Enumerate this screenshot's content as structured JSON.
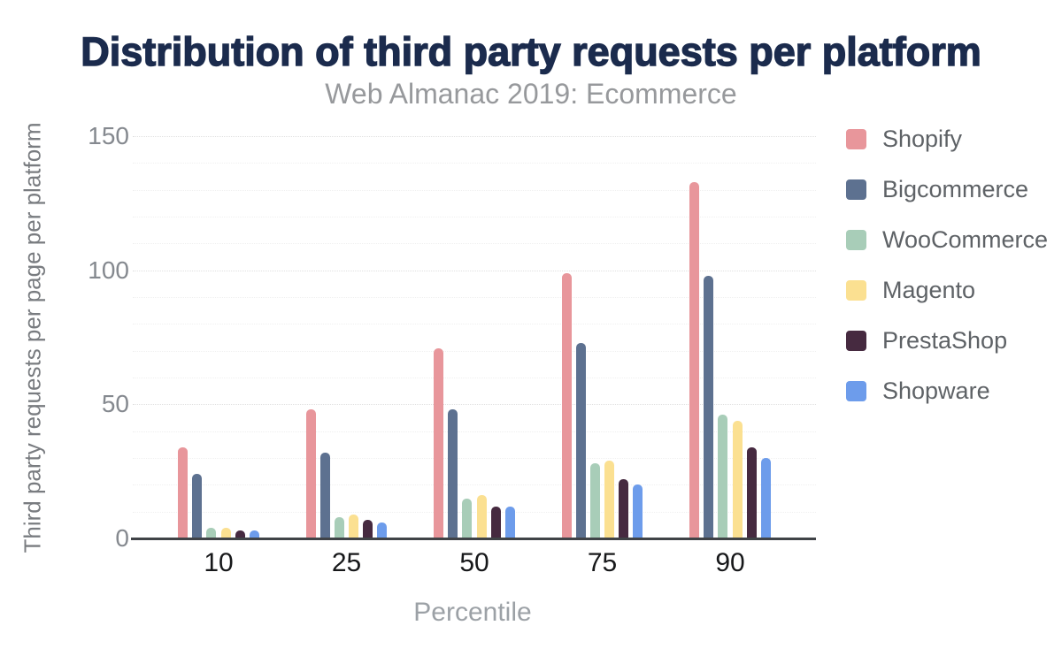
{
  "title": "Distribution of third party requests per platform",
  "subtitle": "Web Almanac 2019: Ecommerce",
  "chart_data": {
    "type": "bar",
    "title": "Distribution of third party requests per platform",
    "subtitle": "Web Almanac 2019: Ecommerce",
    "xlabel": "Percentile",
    "ylabel": "Third party requests per page per platform",
    "categories": [
      "10",
      "25",
      "50",
      "75",
      "90"
    ],
    "series": [
      {
        "name": "Shopify",
        "color": "#e8969b",
        "values": [
          34,
          48,
          71,
          99,
          133
        ]
      },
      {
        "name": "Bigcommerce",
        "color": "#5d7190",
        "values": [
          24,
          32,
          48,
          73,
          98
        ]
      },
      {
        "name": "WooCommerce",
        "color": "#a8cdb8",
        "values": [
          4,
          8,
          15,
          28,
          46
        ]
      },
      {
        "name": "Magento",
        "color": "#fbe091",
        "values": [
          4,
          9,
          16,
          29,
          44
        ]
      },
      {
        "name": "PrestaShop",
        "color": "#462a40",
        "values": [
          3,
          7,
          12,
          22,
          34
        ]
      },
      {
        "name": "Shopware",
        "color": "#6d9ceb",
        "values": [
          3,
          6,
          12,
          20,
          30
        ]
      }
    ],
    "ylim": [
      0,
      150
    ],
    "yticks": [
      "0",
      "50",
      "100",
      "150"
    ],
    "minor_grid_step": 10,
    "grid": "on",
    "legend_position": "right",
    "text_colors": {
      "title": "#1b2b4d",
      "subtitle": "#97999c",
      "axis_labels": "#797c80",
      "tick_labels": "#85898f",
      "category_labels": "#17181a",
      "legend_labels": "#5e6266"
    }
  }
}
